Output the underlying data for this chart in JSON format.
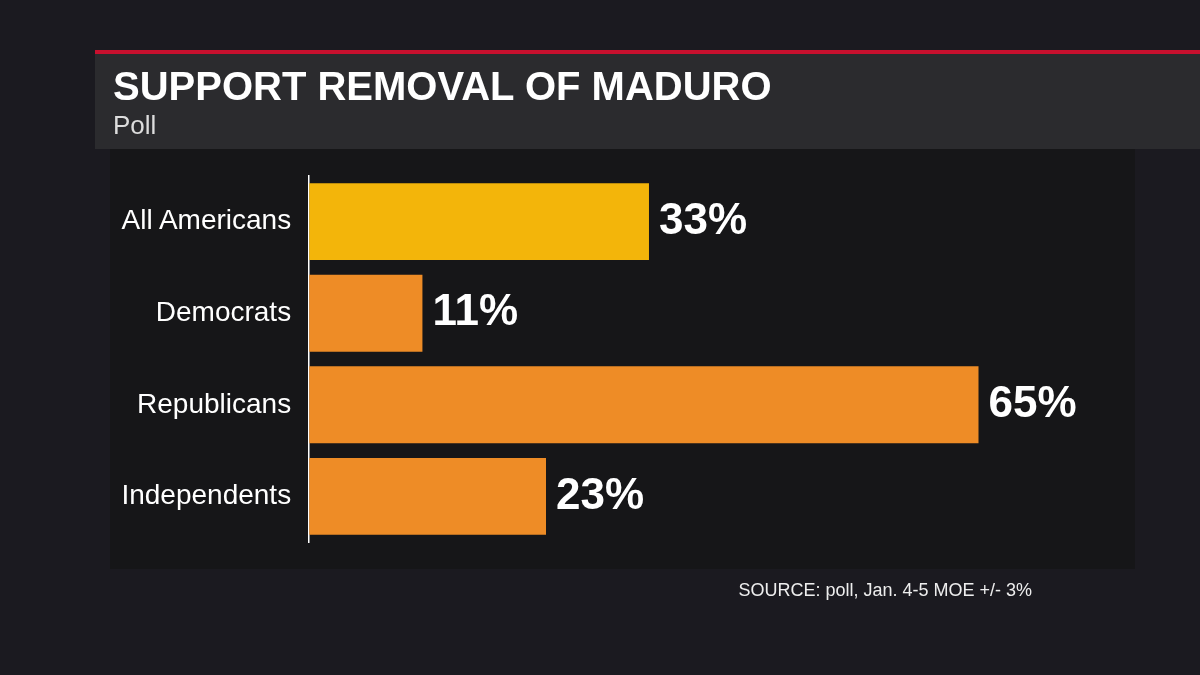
{
  "chart_data": {
    "type": "bar",
    "orientation": "horizontal",
    "title": "SUPPORT REMOVAL OF MADURO",
    "subtitle": "Poll",
    "categories": [
      "All Americans",
      "Democrats",
      "Republicans",
      "Independents"
    ],
    "values": [
      33,
      11,
      65,
      23
    ],
    "colors": [
      "#f3b50a",
      "#ee8c26",
      "#ee8c26",
      "#ee8c26"
    ],
    "value_labels": [
      "33%",
      "11%",
      "65%",
      "23%"
    ],
    "legend": false,
    "tick_labels": "y",
    "annotations": [
      "SOURCE: poll, Jan. 4-5 MOE +/- 3%"
    ]
  }
}
